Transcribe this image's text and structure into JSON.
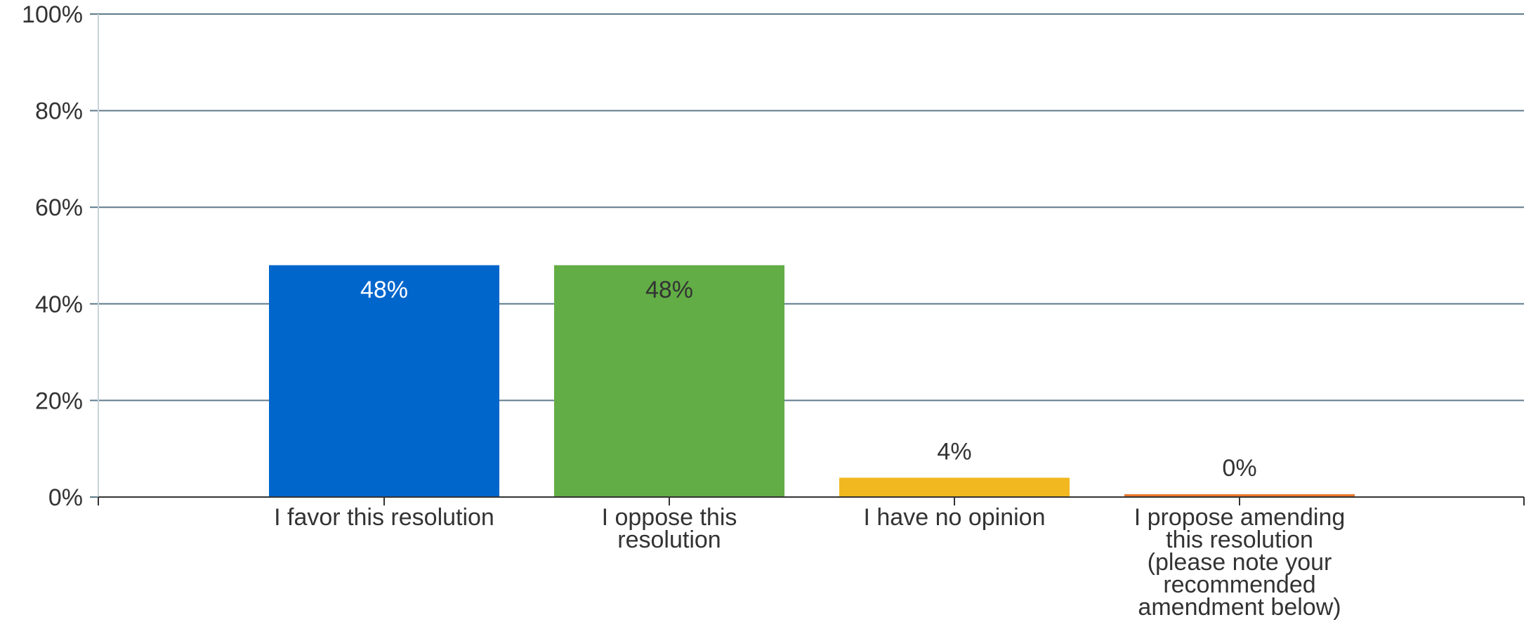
{
  "chart_data": {
    "type": "bar",
    "title": "",
    "xlabel": "",
    "ylabel": "",
    "ylim": [
      0,
      100
    ],
    "yticks": [
      "0%",
      "20%",
      "40%",
      "60%",
      "80%",
      "100%"
    ],
    "grid": true,
    "legend": "none",
    "categories": [
      [
        "I favor this resolution"
      ],
      [
        "I oppose this",
        "resolution"
      ],
      [
        "I have no opinion"
      ],
      [
        "I propose amending",
        "this resolution",
        "(please note your",
        "recommended",
        "amendment below)"
      ]
    ],
    "values": [
      48,
      48,
      4,
      0
    ],
    "data_labels": [
      "48%",
      "48%",
      "4%",
      "0%"
    ],
    "colors": [
      "#0066cc",
      "#62ad46",
      "#f1b820",
      "#e8762c"
    ],
    "label_colors": [
      "#ffffff",
      "#333333",
      "#333333",
      "#333333"
    ]
  }
}
